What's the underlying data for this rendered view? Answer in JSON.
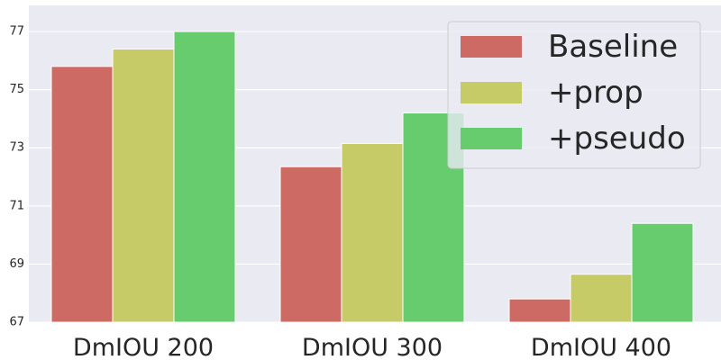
{
  "chart_data": {
    "type": "bar",
    "categories": [
      "DmIOU 200",
      "DmIOU 300",
      "DmIOU 400"
    ],
    "series": [
      {
        "name": "Baseline",
        "values": [
          75.8,
          72.35,
          67.8
        ]
      },
      {
        "name": "+prop",
        "values": [
          76.4,
          73.15,
          68.65
        ]
      },
      {
        "name": "+pseudo",
        "values": [
          77.0,
          74.2,
          70.4
        ]
      }
    ],
    "ylim": [
      67,
      77.9
    ],
    "yticks": [
      67,
      69,
      71,
      73,
      75,
      77
    ],
    "title": "",
    "xlabel": "",
    "ylabel": "",
    "grid": true,
    "legend_position": "top-right",
    "colors": {
      "Baseline": "#cd6a63",
      "+prop": "#c6cb68",
      "+pseudo": "#66cc6e",
      "background": "#eaeaf2",
      "grid": "#ffffff"
    }
  }
}
